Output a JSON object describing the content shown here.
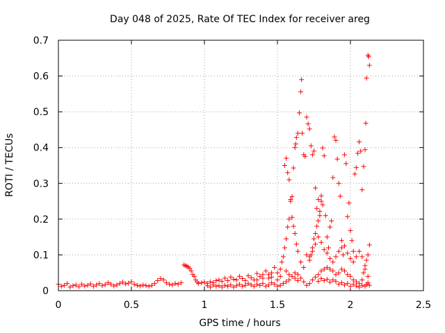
{
  "chart_data": {
    "type": "scatter",
    "title": "Day 048 of 2025, Rate Of TEC Index for receiver areg",
    "xlabel": "GPS time / hours",
    "ylabel": "ROTI / TECUs",
    "xlim": [
      0,
      2.5
    ],
    "ylim": [
      0,
      0.7
    ],
    "xticks": [
      0,
      0.5,
      1,
      1.5,
      2,
      2.5
    ],
    "xtick_labels": [
      "0",
      "0.5",
      "1",
      "1.5",
      "2",
      "2.5"
    ],
    "yticks": [
      0,
      0.1,
      0.2,
      0.3,
      0.4,
      0.5,
      0.6,
      0.7
    ],
    "ytick_labels": [
      "0",
      "0.1",
      "0.2",
      "0.3",
      "0.4",
      "0.5",
      "0.6",
      "0.7"
    ],
    "grid": true,
    "marker": "+",
    "colors": {
      "series": "#ff0000",
      "grid": "#a0a0a0",
      "axes": "#000000"
    },
    "series": [
      {
        "name": "",
        "points": [
          [
            0.0,
            0.018
          ],
          [
            0.02,
            0.012
          ],
          [
            0.04,
            0.015
          ],
          [
            0.06,
            0.02
          ],
          [
            0.08,
            0.01
          ],
          [
            0.1,
            0.014
          ],
          [
            0.12,
            0.016
          ],
          [
            0.14,
            0.011
          ],
          [
            0.16,
            0.018
          ],
          [
            0.18,
            0.013
          ],
          [
            0.2,
            0.015
          ],
          [
            0.22,
            0.019
          ],
          [
            0.24,
            0.012
          ],
          [
            0.26,
            0.016
          ],
          [
            0.28,
            0.02
          ],
          [
            0.3,
            0.014
          ],
          [
            0.32,
            0.017
          ],
          [
            0.34,
            0.022
          ],
          [
            0.36,
            0.018
          ],
          [
            0.38,
            0.013
          ],
          [
            0.4,
            0.016
          ],
          [
            0.42,
            0.02
          ],
          [
            0.44,
            0.024
          ],
          [
            0.46,
            0.019
          ],
          [
            0.48,
            0.021
          ],
          [
            0.5,
            0.025
          ],
          [
            0.52,
            0.018
          ],
          [
            0.54,
            0.015
          ],
          [
            0.56,
            0.013
          ],
          [
            0.58,
            0.016
          ],
          [
            0.6,
            0.014
          ],
          [
            0.62,
            0.012
          ],
          [
            0.64,
            0.015
          ],
          [
            0.66,
            0.02
          ],
          [
            0.68,
            0.028
          ],
          [
            0.7,
            0.034
          ],
          [
            0.72,
            0.03
          ],
          [
            0.74,
            0.022
          ],
          [
            0.76,
            0.018
          ],
          [
            0.78,
            0.016
          ],
          [
            0.8,
            0.02
          ],
          [
            0.82,
            0.018
          ],
          [
            0.84,
            0.022
          ],
          [
            0.86,
            0.072
          ],
          [
            0.87,
            0.07
          ],
          [
            0.88,
            0.068
          ],
          [
            0.89,
            0.066
          ],
          [
            0.9,
            0.062
          ],
          [
            0.91,
            0.055
          ],
          [
            0.92,
            0.045
          ],
          [
            0.93,
            0.04
          ],
          [
            0.94,
            0.03
          ],
          [
            0.95,
            0.024
          ],
          [
            0.96,
            0.02
          ],
          [
            0.98,
            0.022
          ],
          [
            1.0,
            0.024
          ],
          [
            1.02,
            0.02
          ],
          [
            1.04,
            0.025
          ],
          [
            1.06,
            0.022
          ],
          [
            1.08,
            0.028
          ],
          [
            1.1,
            0.03
          ],
          [
            1.12,
            0.026
          ],
          [
            1.14,
            0.035
          ],
          [
            1.16,
            0.028
          ],
          [
            1.18,
            0.038
          ],
          [
            1.2,
            0.032
          ],
          [
            1.22,
            0.03
          ],
          [
            1.24,
            0.04
          ],
          [
            1.26,
            0.034
          ],
          [
            1.28,
            0.028
          ],
          [
            1.3,
            0.042
          ],
          [
            1.32,
            0.036
          ],
          [
            1.34,
            0.03
          ],
          [
            1.36,
            0.048
          ],
          [
            1.38,
            0.04
          ],
          [
            1.4,
            0.035
          ],
          [
            1.42,
            0.055
          ],
          [
            1.44,
            0.045
          ],
          [
            1.46,
            0.038
          ],
          [
            1.48,
            0.065
          ],
          [
            1.5,
            0.05
          ],
          [
            1.52,
            0.06
          ],
          [
            1.53,
            0.08
          ],
          [
            1.54,
            0.095
          ],
          [
            1.55,
            0.12
          ],
          [
            1.56,
            0.145
          ],
          [
            1.57,
            0.178
          ],
          [
            1.58,
            0.2
          ],
          [
            1.59,
            0.25
          ],
          [
            1.6,
            0.263
          ],
          [
            1.61,
            0.343
          ],
          [
            1.62,
            0.4
          ],
          [
            1.625,
            0.41
          ],
          [
            1.63,
            0.428
          ],
          [
            1.64,
            0.44
          ],
          [
            1.65,
            0.497
          ],
          [
            1.66,
            0.556
          ],
          [
            1.665,
            0.59
          ],
          [
            1.67,
            0.44
          ],
          [
            1.68,
            0.38
          ],
          [
            1.69,
            0.375
          ],
          [
            1.7,
            0.485
          ],
          [
            1.71,
            0.466
          ],
          [
            1.72,
            0.452
          ],
          [
            1.73,
            0.405
          ],
          [
            1.74,
            0.38
          ],
          [
            1.75,
            0.39
          ],
          [
            1.76,
            0.287
          ],
          [
            1.77,
            0.23
          ],
          [
            1.78,
            0.255
          ],
          [
            1.79,
            0.222
          ],
          [
            1.8,
            0.265
          ],
          [
            1.81,
            0.399
          ],
          [
            1.82,
            0.377
          ],
          [
            1.83,
            0.21
          ],
          [
            1.84,
            0.15
          ],
          [
            1.85,
            0.12
          ],
          [
            1.86,
            0.178
          ],
          [
            1.87,
            0.195
          ],
          [
            1.88,
            0.316
          ],
          [
            1.89,
            0.43
          ],
          [
            1.9,
            0.42
          ],
          [
            1.91,
            0.368
          ],
          [
            1.92,
            0.3
          ],
          [
            1.93,
            0.264
          ],
          [
            1.94,
            0.12
          ],
          [
            1.95,
            0.1
          ],
          [
            1.96,
            0.38
          ],
          [
            1.97,
            0.355
          ],
          [
            1.98,
            0.207
          ],
          [
            1.99,
            0.245
          ],
          [
            2.0,
            0.168
          ],
          [
            2.01,
            0.14
          ],
          [
            2.02,
            0.11
          ],
          [
            2.03,
            0.326
          ],
          [
            2.04,
            0.344
          ],
          [
            2.05,
            0.384
          ],
          [
            2.06,
            0.416
          ],
          [
            2.07,
            0.39
          ],
          [
            2.08,
            0.282
          ],
          [
            2.09,
            0.347
          ],
          [
            2.1,
            0.394
          ],
          [
            2.105,
            0.468
          ],
          [
            2.11,
            0.594
          ],
          [
            2.12,
            0.658
          ],
          [
            2.125,
            0.654
          ],
          [
            2.13,
            0.63
          ],
          [
            2.13,
            0.128
          ],
          [
            2.12,
            0.1
          ],
          [
            2.11,
            0.085
          ],
          [
            2.1,
            0.07
          ],
          [
            2.09,
            0.05
          ],
          [
            2.08,
            0.03
          ],
          [
            2.06,
            0.02
          ],
          [
            2.04,
            0.025
          ],
          [
            2.02,
            0.03
          ],
          [
            2.0,
            0.04
          ],
          [
            1.98,
            0.045
          ],
          [
            1.96,
            0.055
          ],
          [
            1.94,
            0.06
          ],
          [
            1.92,
            0.05
          ],
          [
            1.9,
            0.045
          ],
          [
            1.88,
            0.055
          ],
          [
            1.86,
            0.06
          ],
          [
            1.84,
            0.065
          ],
          [
            1.82,
            0.06
          ],
          [
            1.8,
            0.055
          ],
          [
            1.78,
            0.045
          ],
          [
            1.76,
            0.038
          ],
          [
            1.74,
            0.03
          ],
          [
            1.72,
            0.02
          ],
          [
            1.7,
            0.015
          ],
          [
            1.68,
            0.025
          ],
          [
            1.66,
            0.035
          ],
          [
            1.64,
            0.045
          ],
          [
            1.62,
            0.05
          ],
          [
            1.6,
            0.04
          ],
          [
            1.58,
            0.03
          ],
          [
            1.56,
            0.025
          ],
          [
            1.54,
            0.02
          ],
          [
            1.52,
            0.015
          ],
          [
            1.5,
            0.012
          ],
          [
            1.48,
            0.018
          ],
          [
            1.46,
            0.022
          ],
          [
            1.44,
            0.016
          ],
          [
            1.42,
            0.012
          ],
          [
            1.4,
            0.02
          ],
          [
            1.38,
            0.015
          ],
          [
            1.36,
            0.018
          ],
          [
            1.34,
            0.012
          ],
          [
            1.32,
            0.016
          ],
          [
            1.3,
            0.02
          ],
          [
            1.28,
            0.015
          ],
          [
            1.26,
            0.012
          ],
          [
            1.24,
            0.018
          ],
          [
            1.22,
            0.014
          ],
          [
            1.2,
            0.01
          ],
          [
            1.18,
            0.016
          ],
          [
            1.16,
            0.012
          ],
          [
            1.14,
            0.015
          ],
          [
            1.12,
            0.01
          ],
          [
            1.1,
            0.014
          ],
          [
            1.08,
            0.012
          ],
          [
            1.06,
            0.016
          ],
          [
            1.04,
            0.01
          ],
          [
            1.02,
            0.014
          ],
          [
            1.7,
            0.1
          ],
          [
            1.72,
            0.095
          ],
          [
            1.74,
            0.11
          ],
          [
            1.76,
            0.13
          ],
          [
            1.78,
            0.15
          ],
          [
            1.8,
            0.135
          ],
          [
            1.82,
            0.115
          ],
          [
            1.84,
            0.105
          ],
          [
            1.86,
            0.09
          ],
          [
            1.88,
            0.08
          ],
          [
            1.9,
            0.095
          ],
          [
            1.92,
            0.11
          ],
          [
            1.94,
            0.14
          ],
          [
            1.96,
            0.125
          ],
          [
            1.98,
            0.105
          ],
          [
            2.0,
            0.09
          ],
          [
            2.02,
            0.08
          ],
          [
            2.04,
            0.095
          ],
          [
            2.06,
            0.11
          ],
          [
            2.08,
            0.095
          ],
          [
            2.1,
            0.06
          ],
          [
            2.12,
            0.04
          ],
          [
            1.66,
            0.08
          ],
          [
            1.68,
            0.065
          ],
          [
            1.62,
            0.035
          ],
          [
            1.64,
            0.028
          ],
          [
            1.58,
            0.045
          ],
          [
            1.56,
            0.055
          ],
          [
            1.52,
            0.04
          ],
          [
            1.5,
            0.03
          ],
          [
            1.46,
            0.05
          ],
          [
            1.44,
            0.035
          ],
          [
            1.4,
            0.045
          ],
          [
            1.36,
            0.03
          ],
          [
            2.13,
            0.015
          ],
          [
            2.12,
            0.022
          ],
          [
            2.11,
            0.018
          ],
          [
            2.1,
            0.012
          ],
          [
            2.08,
            0.015
          ],
          [
            2.06,
            0.01
          ],
          [
            2.04,
            0.013
          ],
          [
            2.02,
            0.018
          ],
          [
            2.0,
            0.012
          ],
          [
            1.98,
            0.02
          ],
          [
            1.96,
            0.016
          ],
          [
            1.94,
            0.022
          ],
          [
            1.92,
            0.018
          ],
          [
            1.9,
            0.026
          ],
          [
            1.88,
            0.03
          ],
          [
            1.86,
            0.024
          ],
          [
            1.84,
            0.032
          ],
          [
            1.82,
            0.028
          ],
          [
            1.8,
            0.034
          ],
          [
            1.78,
            0.026
          ],
          [
            1.8,
            0.25
          ],
          [
            1.81,
            0.24
          ],
          [
            1.79,
            0.21
          ],
          [
            1.78,
            0.195
          ],
          [
            1.77,
            0.18
          ],
          [
            1.76,
            0.16
          ],
          [
            1.75,
            0.145
          ],
          [
            1.74,
            0.12
          ],
          [
            1.73,
            0.1
          ],
          [
            1.72,
            0.085
          ],
          [
            1.55,
            0.35
          ],
          [
            1.56,
            0.37
          ],
          [
            1.57,
            0.33
          ],
          [
            1.58,
            0.31
          ],
          [
            1.59,
            0.255
          ],
          [
            1.6,
            0.205
          ],
          [
            1.61,
            0.18
          ],
          [
            1.62,
            0.16
          ],
          [
            1.63,
            0.13
          ],
          [
            1.64,
            0.11
          ]
        ]
      }
    ]
  }
}
